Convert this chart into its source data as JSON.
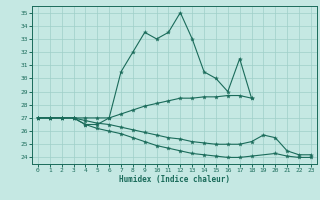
{
  "xlabel": "Humidex (Indice chaleur)",
  "xlim": [
    -0.5,
    23.5
  ],
  "ylim": [
    23.5,
    35.5
  ],
  "xticks": [
    0,
    1,
    2,
    3,
    4,
    5,
    6,
    7,
    8,
    9,
    10,
    11,
    12,
    13,
    14,
    15,
    16,
    17,
    18,
    19,
    20,
    21,
    22,
    23
  ],
  "yticks": [
    24,
    25,
    26,
    27,
    28,
    29,
    30,
    31,
    32,
    33,
    34,
    35
  ],
  "bg_color": "#c5e8e3",
  "grid_color": "#9fcfc8",
  "line_color": "#1a6b5a",
  "lines": [
    [
      27,
      27,
      27,
      27,
      26.5,
      26.5,
      27,
      30.5,
      32,
      33.5,
      33,
      33.5,
      35,
      33,
      30.5,
      30,
      29,
      31.5,
      28.5,
      null,
      null,
      null,
      null,
      null
    ],
    [
      27,
      27,
      27,
      27,
      27,
      27,
      27,
      27.3,
      27.6,
      27.9,
      28.1,
      28.3,
      28.5,
      28.5,
      28.6,
      28.6,
      28.7,
      28.7,
      28.5,
      null,
      null,
      null,
      null,
      null
    ],
    [
      27,
      27,
      27,
      27,
      26.8,
      26.6,
      26.5,
      26.3,
      26.1,
      25.9,
      25.7,
      25.5,
      25.4,
      25.2,
      25.1,
      25.0,
      25.0,
      25.0,
      25.2,
      25.7,
      25.5,
      24.5,
      24.2,
      24.2
    ],
    [
      27,
      27,
      27,
      27,
      26.5,
      26.2,
      26.0,
      25.8,
      25.5,
      25.2,
      24.9,
      24.7,
      24.5,
      24.3,
      24.2,
      24.1,
      24.0,
      24.0,
      24.1,
      null,
      24.3,
      24.1,
      24.0,
      24.0
    ]
  ]
}
